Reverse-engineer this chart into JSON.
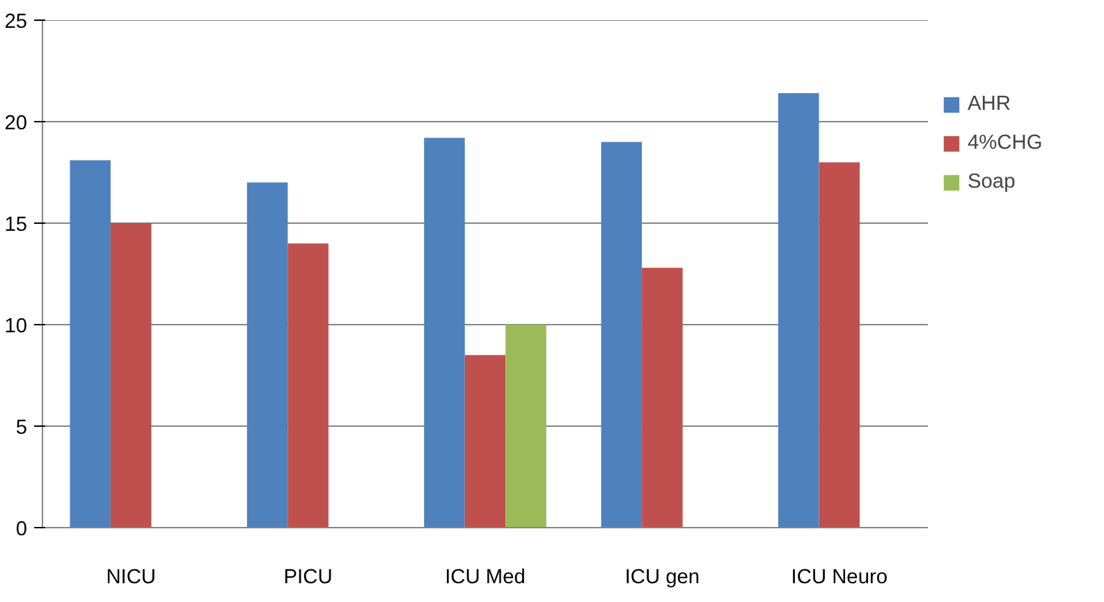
{
  "chart_data": {
    "type": "bar",
    "categories": [
      "NICU",
      "PICU",
      "ICU Med",
      "ICU gen",
      "ICU Neuro"
    ],
    "series": [
      {
        "name": "AHR",
        "color": "#4f81bd",
        "values": [
          18.1,
          17.0,
          19.2,
          19.0,
          21.4
        ]
      },
      {
        "name": "4%CHG",
        "color": "#c0504d",
        "values": [
          15.0,
          14.0,
          8.5,
          12.8,
          18.0
        ]
      },
      {
        "name": "Soap",
        "color": "#9bbb59",
        "values": [
          null,
          null,
          10.0,
          null,
          null
        ]
      }
    ],
    "ylim": [
      0,
      25
    ],
    "yticks": [
      0,
      5,
      10,
      15,
      20,
      25
    ],
    "grid": "y",
    "legend": "right"
  }
}
